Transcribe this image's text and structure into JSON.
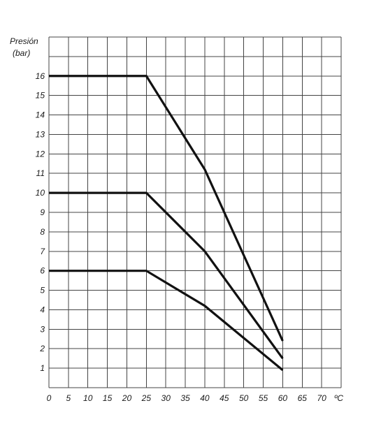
{
  "chart_data": {
    "type": "line",
    "ylabel_lines": [
      "Presión",
      "(bar)"
    ],
    "x_unit": "ºC",
    "x_ticks": [
      "0",
      "5",
      "10",
      "15",
      "20",
      "25",
      "30",
      "35",
      "40",
      "45",
      "50",
      "55",
      "60",
      "65",
      "70"
    ],
    "y_ticks": [
      "1",
      "2",
      "3",
      "4",
      "5",
      "6",
      "7",
      "8",
      "9",
      "10",
      "11",
      "12",
      "13",
      "14",
      "15",
      "16"
    ],
    "xlim": [
      0,
      75
    ],
    "ylim": [
      0,
      18
    ],
    "grid": true,
    "series": [
      {
        "x": [
          0,
          25,
          40,
          60
        ],
        "y": [
          16,
          16,
          11.2,
          2.4
        ]
      },
      {
        "x": [
          0,
          25,
          40,
          60
        ],
        "y": [
          10,
          10,
          7,
          1.5
        ]
      },
      {
        "x": [
          0,
          25,
          40,
          60
        ],
        "y": [
          6,
          6,
          4.2,
          0.9
        ]
      }
    ],
    "colors": {
      "line": "#111111",
      "grid": "#444444",
      "text": "#1a1a1a"
    }
  }
}
